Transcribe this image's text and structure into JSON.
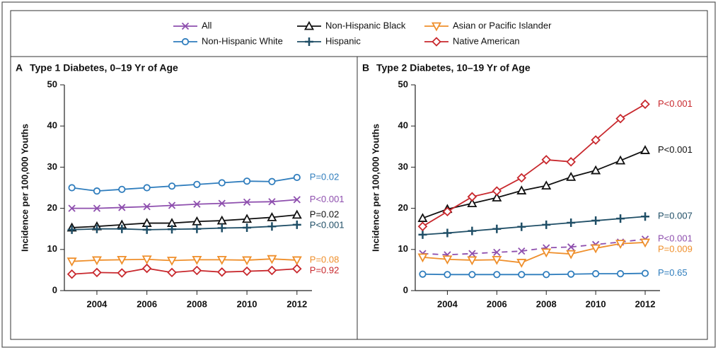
{
  "chart_data": [
    {
      "type": "line",
      "panel": "A",
      "title": "Type 1 Diabetes, 0–19 Yr of Age",
      "ylabel": "Incidence per 100,000 Youths",
      "x": [
        2003,
        2004,
        2005,
        2006,
        2007,
        2008,
        2009,
        2010,
        2011,
        2012
      ],
      "xlim": [
        2002.7,
        2012.6
      ],
      "xticks": [
        2004,
        2006,
        2008,
        2010,
        2012
      ],
      "ylim": [
        0,
        50
      ],
      "yticks": [
        0,
        10,
        20,
        30,
        40,
        50
      ],
      "series": [
        {
          "name": "All",
          "color": "#8e4fae",
          "marker": "x",
          "values": [
            20,
            20,
            20.2,
            20.4,
            20.7,
            21,
            21.2,
            21.5,
            21.6,
            22.1
          ],
          "p_label": "P<0.001"
        },
        {
          "name": "Non-Hispanic Black",
          "color": "#111111",
          "marker": "triangle",
          "values": [
            15.3,
            15.6,
            16,
            16.4,
            16.4,
            16.8,
            17,
            17.4,
            17.8,
            18.4
          ],
          "p_label": "P=0.02"
        },
        {
          "name": "Asian or Pacific Islander",
          "color": "#ef8f2b",
          "marker": "triangle-down",
          "values": [
            7.1,
            7.4,
            7.5,
            7.6,
            7.3,
            7.5,
            7.5,
            7.4,
            7.7,
            7.4
          ],
          "p_label": "P=0.08"
        },
        {
          "name": "Non-Hispanic White",
          "color": "#2f7dbd",
          "marker": "circle",
          "values": [
            25,
            24.2,
            24.6,
            25,
            25.4,
            25.8,
            26.2,
            26.6,
            26.5,
            27.5
          ],
          "p_label": "P=0.02"
        },
        {
          "name": "Hispanic",
          "color": "#1f4e66",
          "marker": "plus",
          "values": [
            14.8,
            15,
            15,
            14.8,
            14.9,
            15,
            15.2,
            15.3,
            15.6,
            16
          ],
          "p_label": "P<0.001"
        },
        {
          "name": "Native American",
          "color": "#c8282d",
          "marker": "diamond",
          "values": [
            4,
            4.4,
            4.3,
            5.4,
            4.4,
            4.9,
            4.5,
            4.7,
            4.9,
            5.3
          ],
          "p_label": "P=0.92"
        }
      ]
    },
    {
      "type": "line",
      "panel": "B",
      "title": "Type 2 Diabetes, 10–19 Yr of Age",
      "ylabel": "Incidence per 100,000 Youths",
      "x": [
        2003,
        2004,
        2005,
        2006,
        2007,
        2008,
        2009,
        2010,
        2011,
        2012
      ],
      "xlim": [
        2002.7,
        2012.6
      ],
      "xticks": [
        2004,
        2006,
        2008,
        2010,
        2012
      ],
      "ylim": [
        0,
        50
      ],
      "yticks": [
        0,
        10,
        20,
        30,
        40,
        50
      ],
      "series": [
        {
          "name": "All",
          "color": "#8e4fae",
          "marker": "x",
          "dashed": true,
          "values": [
            9,
            8.7,
            9,
            9.3,
            9.6,
            10.4,
            10.6,
            11.2,
            11.8,
            12.5
          ],
          "p_label": "P<0.001"
        },
        {
          "name": "Non-Hispanic Black",
          "color": "#111111",
          "marker": "triangle",
          "values": [
            17.6,
            19.8,
            21.2,
            22.6,
            24.3,
            25.5,
            27.6,
            29.2,
            31.6,
            34.1
          ],
          "p_label": "P<0.001"
        },
        {
          "name": "Asian or Pacific Islander",
          "color": "#ef8f2b",
          "marker": "triangle-down",
          "values": [
            8.1,
            7.6,
            7.4,
            7.5,
            6.8,
            9.3,
            8.9,
            10.3,
            11.4,
            11.7
          ],
          "p_label": "P=0.009"
        },
        {
          "name": "Non-Hispanic White",
          "color": "#2f7dbd",
          "marker": "circle",
          "values": [
            4,
            3.9,
            3.9,
            3.9,
            3.9,
            3.9,
            4,
            4.1,
            4.1,
            4.2
          ],
          "p_label": "P=0.65"
        },
        {
          "name": "Hispanic",
          "color": "#1f4e66",
          "marker": "plus",
          "values": [
            13.6,
            14,
            14.5,
            15,
            15.5,
            16,
            16.5,
            17,
            17.5,
            18
          ],
          "p_label": "P=0.007"
        },
        {
          "name": "Native American",
          "color": "#c8282d",
          "marker": "diamond",
          "values": [
            15.6,
            19.2,
            22.8,
            24.2,
            27.4,
            31.8,
            31.3,
            36.6,
            41.8,
            45.3
          ],
          "p_label": "P<0.001"
        }
      ]
    }
  ]
}
